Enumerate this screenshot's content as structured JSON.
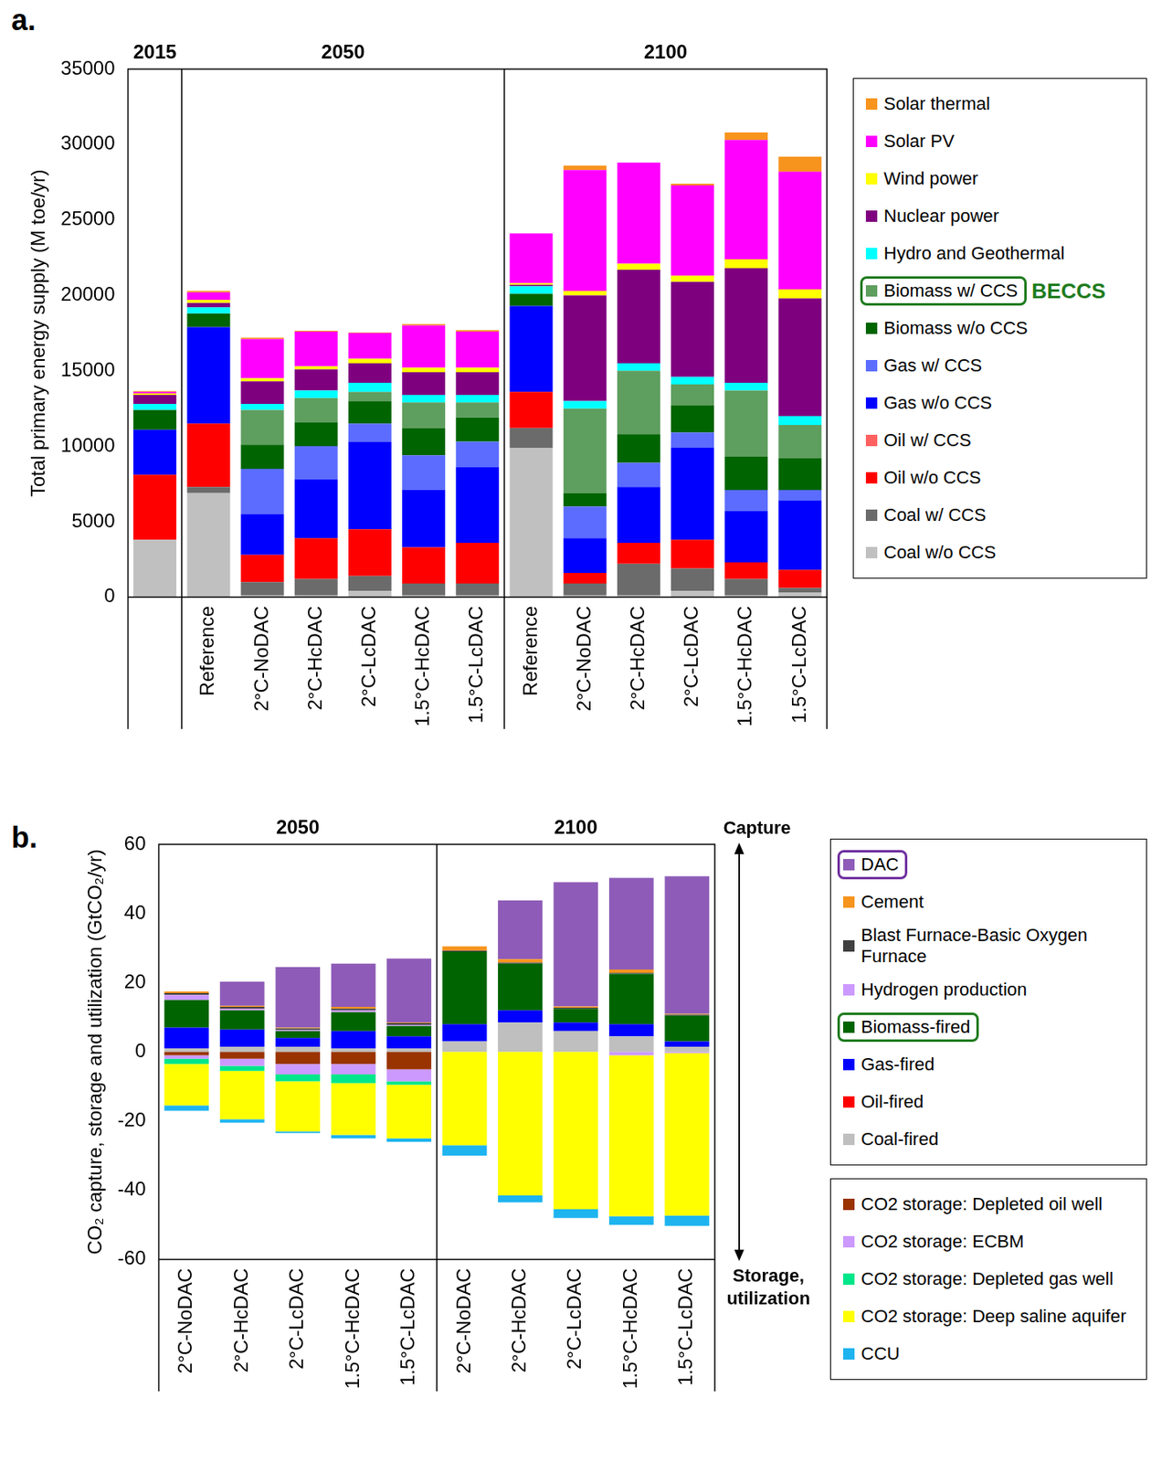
{
  "chart_data": [
    {
      "type": "bar",
      "panel_label": "a.",
      "stacked": true,
      "grid": false,
      "legend": "right",
      "y_label": "Total primary energy supply (M toe/yr)",
      "ylim": [
        0,
        35000
      ],
      "yticks": [
        0,
        5000,
        10000,
        15000,
        20000,
        25000,
        30000,
        35000
      ],
      "categories": [
        null,
        "Reference",
        "2°C-NoDAC",
        "2°C-HcDAC",
        "2°C-LcDAC",
        "1.5°C-HcDAC",
        "1.5°C-LcDAC",
        "Reference",
        "2°C-NoDAC",
        "2°C-HcDAC",
        "2°C-LcDAC",
        "1.5°C-HcDAC",
        "1.5°C-LcDAC"
      ],
      "group_labels": [
        "2015",
        "2050",
        "2050",
        "2050",
        "2050",
        "2050",
        "2050",
        "2100",
        "2100",
        "2100",
        "2100",
        "2100",
        "2100"
      ],
      "series": [
        {
          "name": "Coal w/o CCS",
          "color": "#c0c0c0",
          "values": [
            3800,
            6900,
            100,
            100,
            400,
            100,
            100,
            9900,
            100,
            100,
            400,
            100,
            300
          ]
        },
        {
          "name": "Coal w/ CCS",
          "color": "#6b6b6b",
          "values": [
            0,
            400,
            900,
            1100,
            1000,
            800,
            800,
            1300,
            800,
            2100,
            1500,
            1100,
            300
          ]
        },
        {
          "name": "Oil w/o CCS",
          "color": "#ff0000",
          "values": [
            4300,
            4200,
            1800,
            2700,
            3100,
            2400,
            2700,
            2400,
            700,
            1400,
            1900,
            1100,
            1200
          ]
        },
        {
          "name": "Oil w/ CCS",
          "color": "#ff6060",
          "values": [
            0,
            0,
            0,
            0,
            0,
            0,
            0,
            0,
            0,
            0,
            0,
            0,
            0
          ]
        },
        {
          "name": "Gas w/o CCS",
          "color": "#0000ff",
          "values": [
            3000,
            6400,
            2700,
            3900,
            5800,
            3800,
            5000,
            5700,
            2300,
            3700,
            6100,
            3400,
            4600
          ]
        },
        {
          "name": "Gas w/ CCS",
          "color": "#5b6cff",
          "values": [
            0,
            0,
            3000,
            2200,
            1200,
            2300,
            1700,
            0,
            2100,
            1600,
            1000,
            1400,
            700
          ]
        },
        {
          "name": "Biomass w/o CCS",
          "color": "#006400",
          "values": [
            1300,
            900,
            1600,
            1600,
            1500,
            1800,
            1600,
            800,
            900,
            1900,
            1800,
            2200,
            2100
          ]
        },
        {
          "name": "Biomass w/ CCS",
          "color": "#5e9e5e",
          "values": [
            0,
            0,
            2300,
            1600,
            600,
            1700,
            1000,
            0,
            5600,
            4200,
            1400,
            4400,
            2200
          ]
        },
        {
          "name": "Hydro and Geothermal",
          "color": "#00ffff",
          "values": [
            400,
            400,
            400,
            500,
            600,
            500,
            500,
            500,
            500,
            500,
            500,
            500,
            600
          ]
        },
        {
          "name": "Nuclear power",
          "color": "#7f007f",
          "values": [
            600,
            300,
            1500,
            1400,
            1300,
            1500,
            1500,
            100,
            7000,
            6200,
            6300,
            7600,
            7800
          ]
        },
        {
          "name": "Wind power",
          "color": "#ffff00",
          "values": [
            100,
            200,
            200,
            200,
            300,
            300,
            300,
            100,
            300,
            400,
            400,
            600,
            600
          ]
        },
        {
          "name": "Solar PV",
          "color": "#ff00ff",
          "values": [
            100,
            500,
            2600,
            2300,
            1700,
            2800,
            2400,
            3300,
            8000,
            6700,
            6000,
            7900,
            7800
          ]
        },
        {
          "name": "Solar thermal",
          "color": "#f7941d",
          "values": [
            50,
            100,
            100,
            50,
            50,
            100,
            100,
            0,
            300,
            0,
            100,
            500,
            1000
          ]
        }
      ],
      "annotations": [
        {
          "text": "BECCS",
          "series": "Biomass w/ CCS",
          "color": "#1e7b1e"
        }
      ]
    },
    {
      "type": "bar",
      "panel_label": "b.",
      "stacked": true,
      "grid": false,
      "legend": "right",
      "y_label": "CO₂ capture, storage and utilization (GtCO₂/yr)",
      "ylim": [
        -60,
        60
      ],
      "yticks": [
        -60,
        -40,
        -20,
        0,
        20,
        40,
        60
      ],
      "categories": [
        "2°C-NoDAC",
        "2°C-HcDAC",
        "2°C-LcDAC",
        "1.5°C-HcDAC",
        "1.5°C-LcDAC",
        "2°C-NoDAC",
        "2°C-HcDAC",
        "2°C-LcDAC",
        "1.5°C-HcDAC",
        "1.5°C-LcDAC"
      ],
      "group_labels": [
        "2050",
        "2050",
        "2050",
        "2050",
        "2050",
        "2100",
        "2100",
        "2100",
        "2100",
        "2100"
      ],
      "series": [
        {
          "name": "Coal-fired",
          "color": "#bfbfbf",
          "values": [
            1,
            1.5,
            1.5,
            1,
            1,
            3,
            8.5,
            6,
            4.5,
            1.5
          ]
        },
        {
          "name": "Oil-fired",
          "color": "#ff0000",
          "values": [
            0,
            0,
            0,
            0,
            0,
            0,
            0,
            0,
            0,
            0
          ]
        },
        {
          "name": "Gas-fired",
          "color": "#0000ff",
          "values": [
            6,
            5,
            2.5,
            5,
            3.5,
            5,
            3.5,
            2.5,
            3.5,
            1.5
          ]
        },
        {
          "name": "Biomass-fired",
          "color": "#006400",
          "values": [
            8,
            5.5,
            2,
            5.5,
            3,
            21,
            13.5,
            4,
            14.5,
            7.5
          ]
        },
        {
          "name": "Hydrogen production",
          "color": "#cc99ff",
          "values": [
            1.5,
            0.5,
            0.3,
            0.5,
            0.3,
            0,
            0,
            0,
            0,
            0
          ]
        },
        {
          "name": "Blast Furnace-Basic Oxygen Furnace",
          "color": "#404040",
          "values": [
            0.5,
            0.5,
            0.5,
            0.5,
            0.5,
            0.3,
            0.3,
            0.3,
            0.3,
            0.3
          ]
        },
        {
          "name": "Cement",
          "color": "#f7941d",
          "values": [
            0.5,
            0.3,
            0.2,
            0.5,
            0.2,
            1.2,
            1,
            0.3,
            1,
            0.2
          ]
        },
        {
          "name": "DAC",
          "color": "#8e5cb8",
          "values": [
            0,
            7,
            17.5,
            12.5,
            18.5,
            0,
            17,
            36,
            26.5,
            39.8
          ]
        },
        {
          "name": "CO2 storage: Depleted oil well",
          "color": "#993300",
          "values": [
            -1,
            -2,
            -3.5,
            -3.5,
            -5,
            0,
            0,
            0,
            0,
            0
          ]
        },
        {
          "name": "CO2 storage: ECBM",
          "color": "#cc99ff",
          "values": [
            -1,
            -2,
            -3,
            -3,
            -3.5,
            0,
            0,
            0,
            -1,
            -0.3
          ]
        },
        {
          "name": "CO2 storage: Depleted gas well",
          "color": "#00e68a",
          "values": [
            -1.5,
            -1.5,
            -2,
            -2.5,
            -1,
            0,
            0,
            0,
            0,
            0
          ]
        },
        {
          "name": "CO2 storage: Deep saline aquifer",
          "color": "#ffff00",
          "values": [
            -12,
            -14,
            -14.5,
            -15,
            -15.5,
            -27,
            -41.5,
            -45.5,
            -46.5,
            -47
          ]
        },
        {
          "name": "CCU",
          "color": "#1eb4f0",
          "values": [
            -1.5,
            -1,
            -0.5,
            -1,
            -1,
            -3,
            -2,
            -2.5,
            -2.5,
            -3
          ]
        }
      ],
      "annotations": [
        {
          "series": "DAC",
          "color": "#7030a0"
        },
        {
          "series": "Biomass-fired",
          "color": "#1e7b1e"
        },
        {
          "text": "Capture"
        },
        {
          "text": "Storage, utilization"
        }
      ]
    }
  ]
}
